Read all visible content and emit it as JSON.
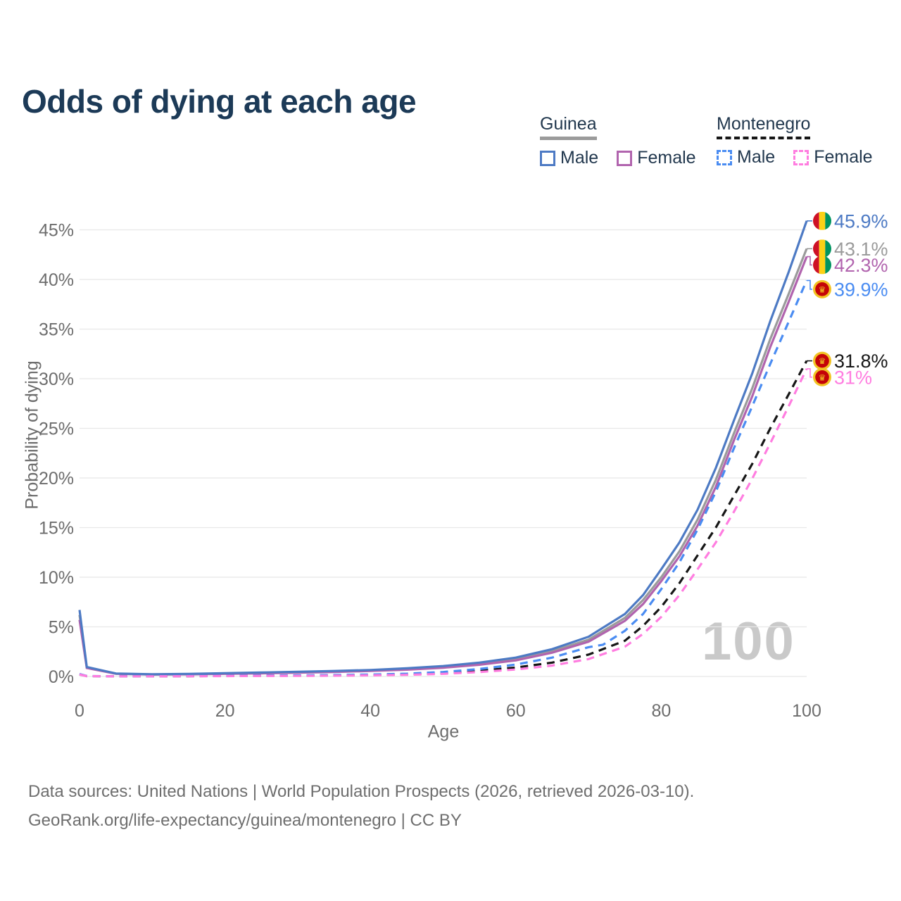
{
  "title": "Odds of dying at each age",
  "legend": {
    "groups": [
      {
        "label": "Guinea",
        "style": "solid",
        "items": [
          {
            "label": "Male",
            "color": "#4d7ac4"
          },
          {
            "label": "Female",
            "color": "#b164ae"
          }
        ]
      },
      {
        "label": "Montenegro",
        "style": "dashed",
        "items": [
          {
            "label": "Male",
            "color": "#4a8cf2"
          },
          {
            "label": "Female",
            "color": "#ff7de0"
          }
        ]
      }
    ]
  },
  "footer": {
    "line1": "Data sources: United Nations | World Population Prospects (2026, retrieved 2026-03-10).",
    "line2": "GeoRank.org/life-expectancy/guinea/montenegro | CC BY"
  },
  "flags": {
    "guinea": {
      "icon": "guinea-flag-icon",
      "red": "#CE1126",
      "yellow": "#FCD116",
      "green": "#009460"
    },
    "montenegro": {
      "icon": "montenegro-flag-icon",
      "gold": "#f2c324",
      "red": "#c40308",
      "emblem_glyph": "♛"
    }
  },
  "chart_data": {
    "type": "line",
    "title": "Odds of dying at each age",
    "xlabel": "Age",
    "ylabel": "Probability of dying",
    "xlim": [
      0,
      100
    ],
    "ylim_pct": [
      0,
      46.5
    ],
    "x_ticks": [
      0,
      20,
      40,
      60,
      80,
      100
    ],
    "y_ticks_pct": [
      0,
      5,
      10,
      15,
      20,
      25,
      30,
      35,
      40,
      45
    ],
    "grid": true,
    "legend_position": "top-right",
    "watermark": "100",
    "series": [
      {
        "name": "Guinea Male",
        "country": "Guinea",
        "sex": "Male",
        "style": "solid",
        "color": "#4d7ac4",
        "end_label": "45.9%",
        "flag": "guinea",
        "points": [
          [
            0,
            6.7
          ],
          [
            1,
            0.95
          ],
          [
            5,
            0.3
          ],
          [
            10,
            0.22
          ],
          [
            15,
            0.26
          ],
          [
            20,
            0.33
          ],
          [
            25,
            0.4
          ],
          [
            30,
            0.47
          ],
          [
            35,
            0.55
          ],
          [
            40,
            0.65
          ],
          [
            45,
            0.82
          ],
          [
            50,
            1.05
          ],
          [
            55,
            1.4
          ],
          [
            60,
            1.9
          ],
          [
            65,
            2.75
          ],
          [
            70,
            4.0
          ],
          [
            75,
            6.3
          ],
          [
            77.5,
            8.2
          ],
          [
            80,
            10.8
          ],
          [
            82.5,
            13.5
          ],
          [
            85,
            16.8
          ],
          [
            87.5,
            21.0
          ],
          [
            90,
            25.8
          ],
          [
            92.5,
            30.5
          ],
          [
            95,
            35.8
          ],
          [
            97.5,
            40.7
          ],
          [
            100,
            45.9
          ]
        ]
      },
      {
        "name": "Guinea",
        "country": "Guinea",
        "sex": "Both",
        "style": "solid",
        "color": "#9b9b9b",
        "end_label": "43.1%",
        "flag": "guinea",
        "points": [
          [
            0,
            6.2
          ],
          [
            1,
            0.9
          ],
          [
            5,
            0.28
          ],
          [
            10,
            0.2
          ],
          [
            15,
            0.23
          ],
          [
            20,
            0.29
          ],
          [
            25,
            0.35
          ],
          [
            30,
            0.42
          ],
          [
            35,
            0.5
          ],
          [
            40,
            0.6
          ],
          [
            45,
            0.75
          ],
          [
            50,
            0.95
          ],
          [
            55,
            1.28
          ],
          [
            60,
            1.75
          ],
          [
            65,
            2.55
          ],
          [
            70,
            3.7
          ],
          [
            75,
            5.9
          ],
          [
            77.5,
            7.7
          ],
          [
            80,
            10.0
          ],
          [
            82.5,
            12.6
          ],
          [
            85,
            15.8
          ],
          [
            87.5,
            19.8
          ],
          [
            90,
            24.5
          ],
          [
            92.5,
            29.0
          ],
          [
            95,
            34.0
          ],
          [
            97.5,
            38.5
          ],
          [
            100,
            43.1
          ]
        ]
      },
      {
        "name": "Guinea Female",
        "country": "Guinea",
        "sex": "Female",
        "style": "solid",
        "color": "#b164ae",
        "end_label": "42.3%",
        "flag": "guinea",
        "points": [
          [
            0,
            5.7
          ],
          [
            1,
            0.85
          ],
          [
            5,
            0.27
          ],
          [
            10,
            0.19
          ],
          [
            15,
            0.21
          ],
          [
            20,
            0.26
          ],
          [
            25,
            0.31
          ],
          [
            30,
            0.38
          ],
          [
            35,
            0.45
          ],
          [
            40,
            0.55
          ],
          [
            45,
            0.68
          ],
          [
            50,
            0.88
          ],
          [
            55,
            1.18
          ],
          [
            60,
            1.62
          ],
          [
            65,
            2.4
          ],
          [
            70,
            3.5
          ],
          [
            75,
            5.6
          ],
          [
            77.5,
            7.3
          ],
          [
            80,
            9.6
          ],
          [
            82.5,
            12.1
          ],
          [
            85,
            15.2
          ],
          [
            87.5,
            19.1
          ],
          [
            90,
            23.8
          ],
          [
            92.5,
            28.2
          ],
          [
            95,
            33.2
          ],
          [
            97.5,
            37.7
          ],
          [
            100,
            42.3
          ]
        ]
      },
      {
        "name": "Montenegro Male",
        "country": "Montenegro",
        "sex": "Male",
        "style": "dashed",
        "color": "#4a8cf2",
        "end_label": "39.9%",
        "flag": "montenegro",
        "points": [
          [
            0,
            0.25
          ],
          [
            1,
            0.04
          ],
          [
            5,
            0.02
          ],
          [
            10,
            0.02
          ],
          [
            15,
            0.04
          ],
          [
            20,
            0.07
          ],
          [
            25,
            0.09
          ],
          [
            30,
            0.11
          ],
          [
            35,
            0.14
          ],
          [
            40,
            0.19
          ],
          [
            45,
            0.28
          ],
          [
            50,
            0.45
          ],
          [
            55,
            0.75
          ],
          [
            60,
            1.2
          ],
          [
            65,
            1.9
          ],
          [
            70,
            2.95
          ],
          [
            72,
            3.2
          ],
          [
            75,
            4.6
          ],
          [
            77.5,
            6.3
          ],
          [
            80,
            8.8
          ],
          [
            82.5,
            11.5
          ],
          [
            85,
            14.8
          ],
          [
            87.5,
            18.6
          ],
          [
            90,
            23.0
          ],
          [
            92.5,
            27.2
          ],
          [
            95,
            31.5
          ],
          [
            97.5,
            35.7
          ],
          [
            100,
            39.9
          ]
        ]
      },
      {
        "name": "Montenegro",
        "country": "Montenegro",
        "sex": "Both",
        "style": "dashed",
        "color": "#161616",
        "end_label": "31.8%",
        "flag": "montenegro",
        "points": [
          [
            0,
            0.22
          ],
          [
            1,
            0.035
          ],
          [
            5,
            0.015
          ],
          [
            10,
            0.015
          ],
          [
            15,
            0.03
          ],
          [
            20,
            0.05
          ],
          [
            25,
            0.07
          ],
          [
            30,
            0.09
          ],
          [
            35,
            0.11
          ],
          [
            40,
            0.15
          ],
          [
            45,
            0.22
          ],
          [
            50,
            0.35
          ],
          [
            55,
            0.58
          ],
          [
            60,
            0.9
          ],
          [
            65,
            1.4
          ],
          [
            70,
            2.2
          ],
          [
            75,
            3.6
          ],
          [
            77.5,
            5.1
          ],
          [
            80,
            7.0
          ],
          [
            82.5,
            9.4
          ],
          [
            85,
            12.2
          ],
          [
            87.5,
            15.0
          ],
          [
            90,
            18.2
          ],
          [
            92.5,
            21.4
          ],
          [
            95,
            25.0
          ],
          [
            97.5,
            28.4
          ],
          [
            100,
            31.8
          ]
        ]
      },
      {
        "name": "Montenegro Female",
        "country": "Montenegro",
        "sex": "Female",
        "style": "dashed",
        "color": "#ff7de0",
        "end_label": "31%",
        "flag": "montenegro",
        "points": [
          [
            0,
            0.2
          ],
          [
            1,
            0.03
          ],
          [
            5,
            0.012
          ],
          [
            10,
            0.012
          ],
          [
            15,
            0.02
          ],
          [
            20,
            0.035
          ],
          [
            25,
            0.05
          ],
          [
            30,
            0.06
          ],
          [
            35,
            0.08
          ],
          [
            40,
            0.11
          ],
          [
            45,
            0.16
          ],
          [
            50,
            0.26
          ],
          [
            55,
            0.45
          ],
          [
            60,
            0.7
          ],
          [
            65,
            1.1
          ],
          [
            70,
            1.75
          ],
          [
            75,
            3.0
          ],
          [
            77.5,
            4.3
          ],
          [
            80,
            6.0
          ],
          [
            82.5,
            8.2
          ],
          [
            85,
            10.8
          ],
          [
            87.5,
            13.5
          ],
          [
            90,
            16.6
          ],
          [
            92.5,
            19.9
          ],
          [
            95,
            23.5
          ],
          [
            97.5,
            27.2
          ],
          [
            100,
            31.0
          ]
        ]
      }
    ]
  }
}
